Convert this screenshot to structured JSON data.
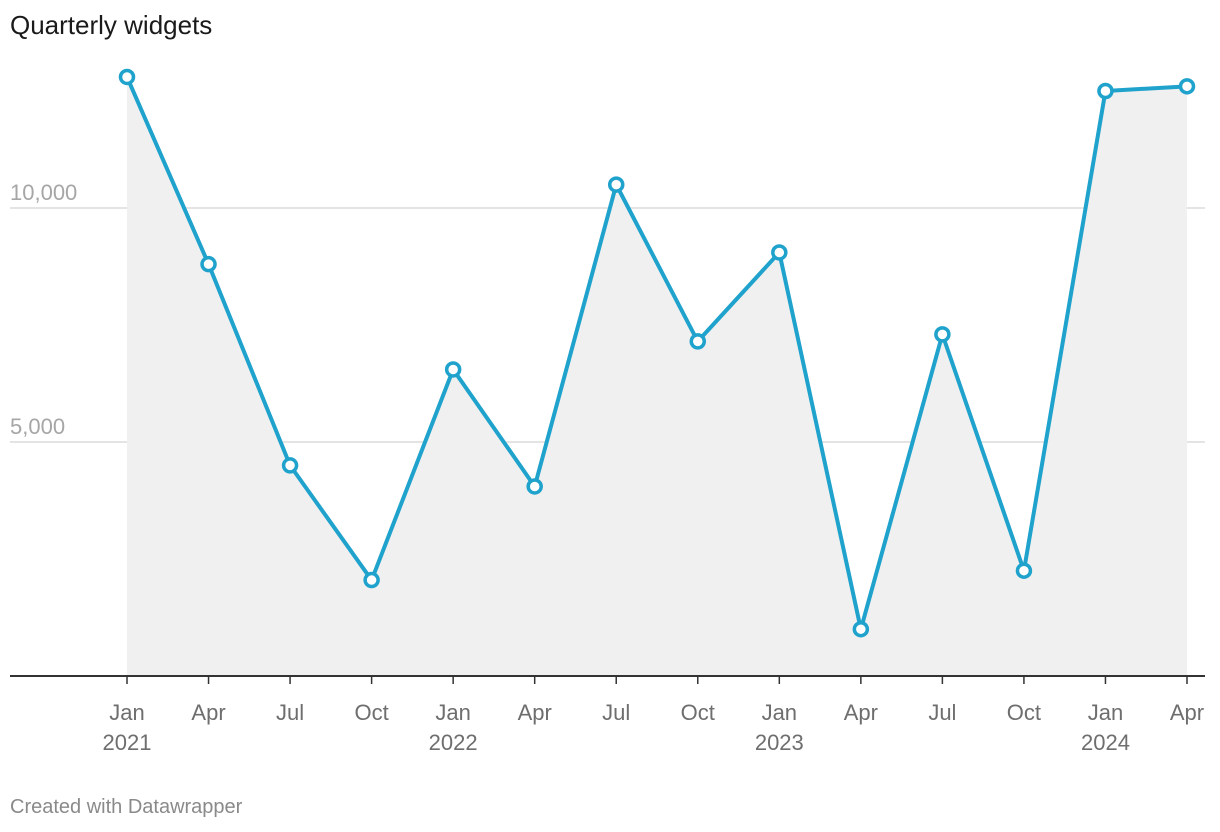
{
  "chart_data": {
    "type": "area",
    "title": "Quarterly widgets",
    "xlabel": "",
    "ylabel": "",
    "x": [
      "Jan 2021",
      "Apr 2021",
      "Jul 2021",
      "Oct 2021",
      "Jan 2022",
      "Apr 2022",
      "Jul 2022",
      "Oct 2022",
      "Jan 2023",
      "Apr 2023",
      "Jul 2023",
      "Oct 2023",
      "Jan 2024",
      "Apr 2024"
    ],
    "x_tick_labels": [
      {
        "month": "Jan",
        "year": "2021"
      },
      {
        "month": "Apr",
        "year": ""
      },
      {
        "month": "Jul",
        "year": ""
      },
      {
        "month": "Oct",
        "year": ""
      },
      {
        "month": "Jan",
        "year": "2022"
      },
      {
        "month": "Apr",
        "year": ""
      },
      {
        "month": "Jul",
        "year": ""
      },
      {
        "month": "Oct",
        "year": ""
      },
      {
        "month": "Jan",
        "year": "2023"
      },
      {
        "month": "Apr",
        "year": ""
      },
      {
        "month": "Jul",
        "year": ""
      },
      {
        "month": "Oct",
        "year": ""
      },
      {
        "month": "Jan",
        "year": "2024"
      },
      {
        "month": "Apr",
        "year": ""
      }
    ],
    "series": [
      {
        "values": [
          12800,
          8800,
          4500,
          2050,
          6550,
          4050,
          10500,
          7150,
          9050,
          1000,
          7300,
          2250,
          12500,
          12600
        ]
      }
    ],
    "ylim": [
      0,
      13500
    ],
    "y_ticks": [
      {
        "value": 5000,
        "label": "5,000"
      },
      {
        "value": 10000,
        "label": "10,000"
      }
    ],
    "grid": true,
    "legend": "none",
    "colors": {
      "line": "#1fa2cc",
      "area": "#f0f0f0",
      "marker_fill": "#ffffff",
      "grid": "#dcdcdc",
      "baseline": "#333333"
    }
  },
  "footer": {
    "credit": "Created with Datawrapper"
  }
}
